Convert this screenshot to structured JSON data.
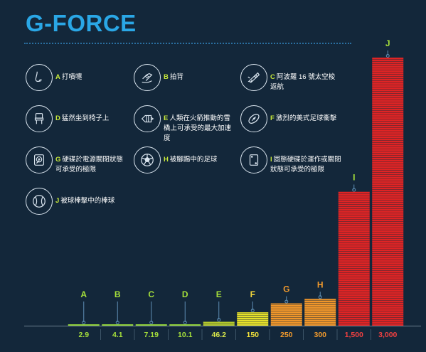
{
  "title": "G-FORCE",
  "legend": [
    {
      "letter": "A",
      "text": "打噴嚏",
      "icon": "nose-icon"
    },
    {
      "letter": "B",
      "text": "拍背",
      "icon": "pat-back-icon"
    },
    {
      "letter": "C",
      "text": "阿波羅 16 號太空梭返航",
      "icon": "spacecraft-icon"
    },
    {
      "letter": "D",
      "text": "猛然坐到椅子上",
      "icon": "chair-icon"
    },
    {
      "letter": "E",
      "text": "人類在火箭推動的雪橇上可承受的最大加速度",
      "icon": "rocket-sled-icon"
    },
    {
      "letter": "F",
      "text": "激烈的美式足球衝擊",
      "icon": "football-icon"
    },
    {
      "letter": "G",
      "text": "硬碟於電源關閉狀態可承受的極限",
      "icon": "hard-drive-icon"
    },
    {
      "letter": "H",
      "text": "被腳踢中的足球",
      "icon": "soccer-ball-icon"
    },
    {
      "letter": "I",
      "text": "固態硬碟於運作或關閉狀態可承受的極限",
      "icon": "ssd-icon"
    },
    {
      "letter": "J",
      "text": "被球棒擊中的棒球",
      "icon": "baseball-icon"
    }
  ],
  "chart_data": {
    "type": "bar",
    "categories": [
      "A",
      "B",
      "C",
      "D",
      "E",
      "F",
      "G",
      "H",
      "I",
      "J"
    ],
    "values": [
      2.9,
      4.1,
      7.19,
      10.1,
      46.2,
      150,
      250,
      300,
      1500,
      3000
    ],
    "value_labels": [
      "2.9",
      "4.1",
      "7.19",
      "10.1",
      "46.2",
      "150",
      "250",
      "300",
      "1,500",
      "3,000"
    ],
    "ylim": [
      0,
      3000
    ],
    "colors": [
      "#8fcf3a",
      "#8fcf3a",
      "#8fcf3a",
      "#8fcf3a",
      "#b5c92c",
      "#e6e02a",
      "#f0962a",
      "#f0962a",
      "#e02424",
      "#e02424"
    ],
    "label_colors": [
      "#a6e03a",
      "#a6e03a",
      "#a6e03a",
      "#a6e03a",
      "#d9e84a",
      "#f2e23a",
      "#f29a2c",
      "#f29a2c",
      "#f04040",
      "#f04040"
    ],
    "letter_colors": [
      "#a6e03a",
      "#a6e03a",
      "#a6e03a",
      "#a6e03a",
      "#a6e03a",
      "#f2d63a",
      "#f29a2c",
      "#f29a2c",
      "#a6e03a",
      "#a6e03a"
    ]
  }
}
